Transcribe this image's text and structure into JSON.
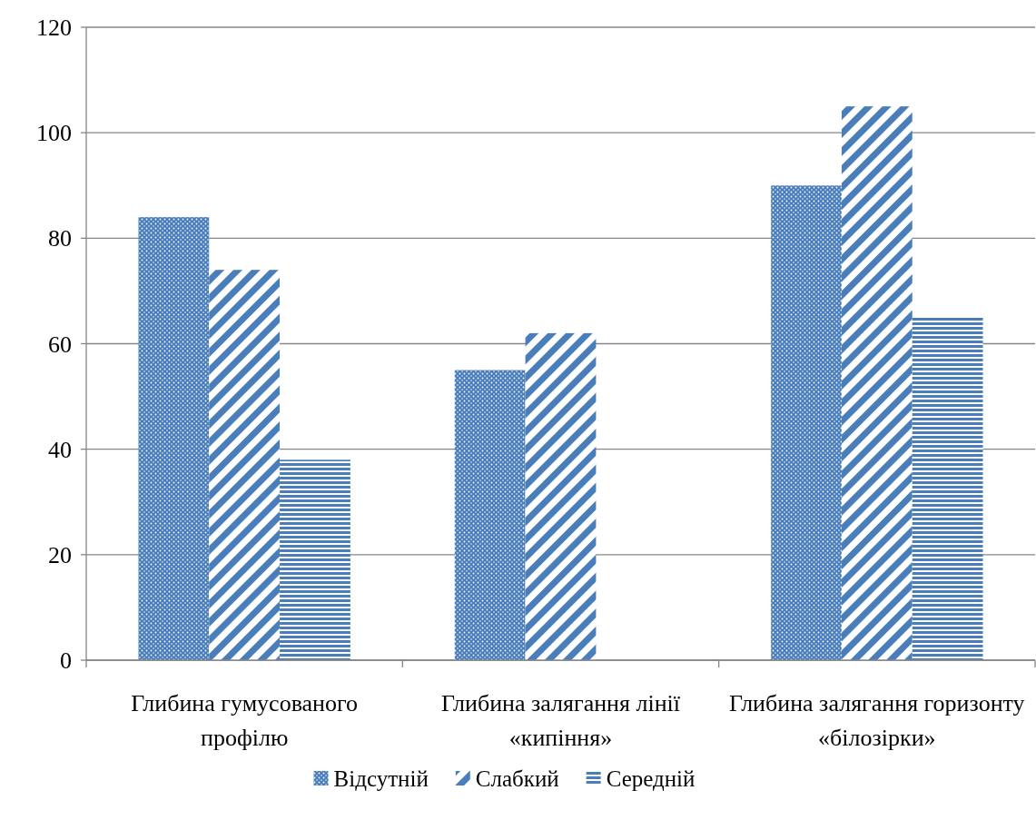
{
  "chart_data": {
    "type": "bar",
    "categories": [
      "Глибина гумусованого профілю",
      "Глибина залягання лінії «кипіння»",
      "Глибина залягання горизонту «білозірки»"
    ],
    "series": [
      {
        "name": "Відсутній",
        "color": "#4a7ebb",
        "values": [
          84,
          55,
          90
        ]
      },
      {
        "name": "Слабкий",
        "color": "#4a7ebb",
        "values": [
          74,
          62,
          105
        ]
      },
      {
        "name": "Середній",
        "color": "#4a7ebb",
        "values": [
          38,
          null,
          65
        ]
      }
    ],
    "ylim": [
      0,
      120
    ],
    "yticks": [
      0,
      20,
      40,
      60,
      80,
      100,
      120
    ],
    "grid": "y",
    "legend": "bottom"
  }
}
